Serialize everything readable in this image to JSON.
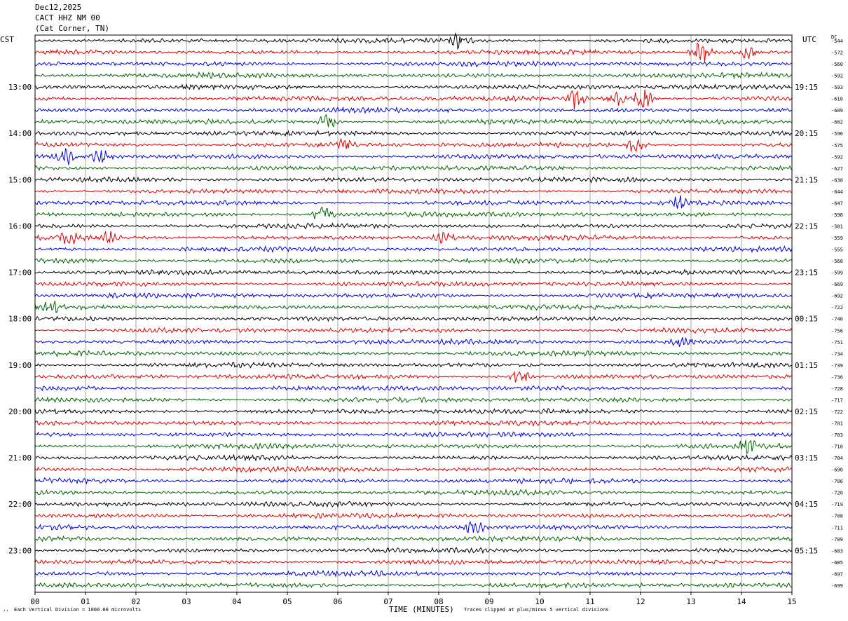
{
  "header": {
    "date": "Dec12,2025",
    "station": "CACT HHZ NM 00",
    "location": "(Cat Corner, TN)"
  },
  "labels": {
    "left_tz": "CST",
    "right_tz": "UTC",
    "dc": "DC",
    "mark": "’ʼ"
  },
  "footer": {
    "left": "Each Vertical Division = 1000.00 microvolts",
    "xlabel": "TIME (MINUTES)",
    "right": "Traces clipped at plus/minus 5 vertical divisions"
  },
  "colors": {
    "trace_cycle": [
      "#000000",
      "#dd0000",
      "#0000dd",
      "#006600"
    ],
    "grid": "#808080",
    "frame": "#000000"
  },
  "chart_data": {
    "type": "line",
    "title": "Dec12,2025 CACT HHZ NM 00 (Cat Corner, TN)",
    "xlabel": "TIME (MINUTES)",
    "x_ticks": [
      "00",
      "01",
      "02",
      "03",
      "04",
      "05",
      "06",
      "07",
      "08",
      "09",
      "10",
      "11",
      "12",
      "13",
      "14",
      "15"
    ],
    "xlim": [
      0,
      15
    ],
    "left_hour_labels": [
      "13:00",
      "14:00",
      "15:00",
      "16:00",
      "17:00",
      "18:00",
      "19:00",
      "20:00",
      "21:00",
      "22:00",
      "23:00"
    ],
    "right_hour_labels": [
      "19:15",
      "20:15",
      "21:15",
      "22:15",
      "23:15",
      "00:15",
      "01:15",
      "02:15",
      "03:15",
      "04:15",
      "05:15"
    ],
    "trace_count": 48,
    "dc_offsets": [
      "-544",
      "-572",
      "-560",
      "-592",
      "-593",
      "-610",
      "-609",
      "-602",
      "-596",
      "-575",
      "-592",
      "-627",
      "-638",
      "-644",
      "-647",
      "-598",
      "-581",
      "-559",
      "-555",
      "-568",
      "-599",
      "-669",
      "-692",
      "-722",
      "-740",
      "-756",
      "-751",
      "-734",
      "-739",
      "-736",
      "-728",
      "-717",
      "-722",
      "-701",
      "-703",
      "-710",
      "-704",
      "-690",
      "-706",
      "-720",
      "-719",
      "-708",
      "-711",
      "-709",
      "-683",
      "-685",
      "-697",
      "-699"
    ],
    "bursts": [
      {
        "trace": 0,
        "minute": 8.45,
        "amplitude": 10
      },
      {
        "trace": 1,
        "minute": 13.2,
        "amplitude": 12
      },
      {
        "trace": 1,
        "minute": 14.1,
        "amplitude": 8
      },
      {
        "trace": 5,
        "minute": 10.7,
        "amplitude": 11
      },
      {
        "trace": 5,
        "minute": 11.5,
        "amplitude": 9
      },
      {
        "trace": 5,
        "minute": 12.05,
        "amplitude": 14
      },
      {
        "trace": 7,
        "minute": 5.8,
        "amplitude": 8
      },
      {
        "trace": 9,
        "minute": 6.1,
        "amplitude": 8
      },
      {
        "trace": 9,
        "minute": 11.9,
        "amplitude": 8
      },
      {
        "trace": 10,
        "minute": 0.6,
        "amplitude": 9
      },
      {
        "trace": 10,
        "minute": 1.3,
        "amplitude": 9
      },
      {
        "trace": 14,
        "minute": 12.8,
        "amplitude": 7
      },
      {
        "trace": 15,
        "minute": 5.7,
        "amplitude": 13
      },
      {
        "trace": 17,
        "minute": 0.7,
        "amplitude": 7
      },
      {
        "trace": 17,
        "minute": 1.5,
        "amplitude": 7
      },
      {
        "trace": 17,
        "minute": 8.1,
        "amplitude": 8
      },
      {
        "trace": 23,
        "minute": 0.3,
        "amplitude": 7
      },
      {
        "trace": 26,
        "minute": 12.8,
        "amplitude": 7
      },
      {
        "trace": 29,
        "minute": 9.6,
        "amplitude": 9
      },
      {
        "trace": 35,
        "minute": 14.1,
        "amplitude": 8
      },
      {
        "trace": 42,
        "minute": 8.7,
        "amplitude": 8
      }
    ]
  }
}
